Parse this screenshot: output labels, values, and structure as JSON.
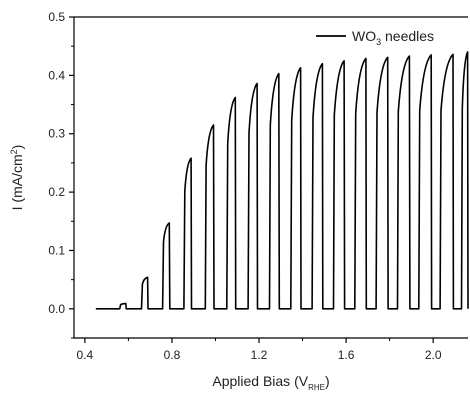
{
  "chart_data": {
    "type": "line",
    "title": "",
    "xlabel": "Applied Bias (V",
    "xlabel_sub": "RHE",
    "xlabel_end": ")",
    "ylabel": "I (mA/cm",
    "ylabel_sup": "2",
    "ylabel_end": ")",
    "xlim": [
      0.35,
      2.16
    ],
    "ylim": [
      -0.05,
      0.5
    ],
    "x_ticks": [
      0.4,
      0.8,
      1.2,
      1.6,
      2.0
    ],
    "x_tick_labels": [
      "0.4",
      "0.8",
      "1.2",
      "1.6",
      "2.0"
    ],
    "y_ticks": [
      0.0,
      0.1,
      0.2,
      0.3,
      0.4,
      0.5
    ],
    "y_tick_labels": [
      "0.0",
      "0.1",
      "0.2",
      "0.3",
      "0.4",
      "0.5"
    ],
    "grid": false,
    "legend_position": "top-right",
    "series": [
      {
        "name_main": "WO",
        "name_sub": "3",
        "name_end": " needles",
        "color": "#000000",
        "style": "chopped-light",
        "x_start": 0.45,
        "x_end": 2.16,
        "dark_current": 0.0,
        "pulses": [
          {
            "on": 0.56,
            "off": 0.59,
            "peak": 0.009
          },
          {
            "on": 0.66,
            "off": 0.69,
            "peak": 0.054
          },
          {
            "on": 0.757,
            "off": 0.79,
            "peak": 0.147
          },
          {
            "on": 0.855,
            "off": 0.89,
            "peak": 0.258
          },
          {
            "on": 0.953,
            "off": 0.993,
            "peak": 0.315
          },
          {
            "on": 1.052,
            "off": 1.093,
            "peak": 0.362
          },
          {
            "on": 1.15,
            "off": 1.193,
            "peak": 0.386
          },
          {
            "on": 1.248,
            "off": 1.293,
            "peak": 0.403
          },
          {
            "on": 1.346,
            "off": 1.393,
            "peak": 0.413
          },
          {
            "on": 1.444,
            "off": 1.493,
            "peak": 0.42
          },
          {
            "on": 1.542,
            "off": 1.593,
            "peak": 0.425
          },
          {
            "on": 1.64,
            "off": 1.693,
            "peak": 0.429
          },
          {
            "on": 1.738,
            "off": 1.793,
            "peak": 0.431
          },
          {
            "on": 1.836,
            "off": 1.893,
            "peak": 0.433
          },
          {
            "on": 1.934,
            "off": 1.993,
            "peak": 0.435
          },
          {
            "on": 2.032,
            "off": 2.093,
            "peak": 0.436
          },
          {
            "on": 2.13,
            "off": 2.16,
            "peak": 0.44
          }
        ]
      }
    ]
  }
}
